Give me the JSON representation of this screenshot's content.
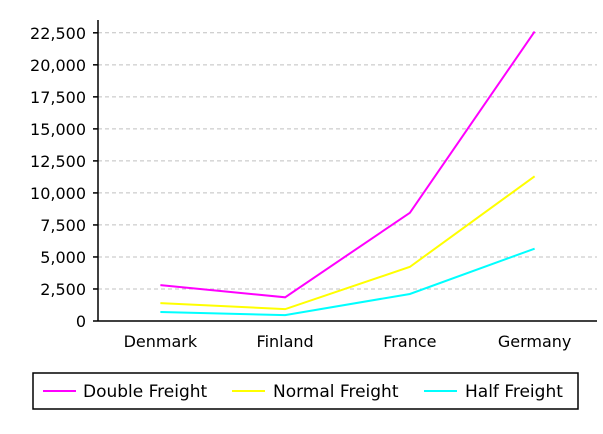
{
  "chart_data": {
    "type": "line",
    "categories": [
      "Denmark",
      "Finland",
      "France",
      "Germany"
    ],
    "series": [
      {
        "name": "Double Freight",
        "color": "#ff00ff",
        "values": [
          2800,
          1850,
          8450,
          22600
        ]
      },
      {
        "name": "Normal Freight",
        "color": "#ffff00",
        "values": [
          1400,
          925,
          4225,
          11300
        ]
      },
      {
        "name": "Half Freight",
        "color": "#00ffff",
        "values": [
          700,
          460,
          2110,
          5650
        ]
      }
    ],
    "yticks": [
      "0",
      "2,500",
      "5,000",
      "7,500",
      "10,000",
      "12,500",
      "15,000",
      "17,500",
      "20,000",
      "22,500"
    ],
    "ylim": [
      0,
      23500
    ],
    "grid": true,
    "grid_style": "dashed horizontal",
    "legend_position": "bottom"
  }
}
